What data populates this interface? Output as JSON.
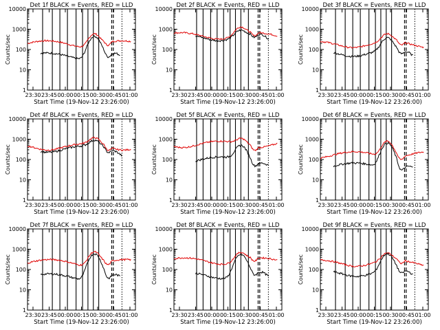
{
  "colors": {
    "events": "#000000",
    "lld": "#e00000",
    "axes": "#000000",
    "background": "#ffffff"
  },
  "chart_data": [
    {
      "type": "line",
      "title": "Det 1f BLACK = Events, RED = LLD",
      "xlabel": "Start Time (19-Nov-12 23:26:00)",
      "ylabel": "Counts/sec",
      "yscale": "log",
      "ylim": [
        1,
        10000
      ],
      "xticks": [
        "23:30",
        "23:45",
        "00:00",
        "00:15",
        "00:30",
        "00:45",
        "01:00"
      ],
      "yticks": [
        "1",
        "10",
        "100",
        "1000",
        "10000"
      ],
      "red_level": 200,
      "red_peak": 600,
      "black_level": 50,
      "black_peak": 450,
      "black_start": 0.12,
      "black_end": 0.8
    },
    {
      "type": "line",
      "title": "Det 2f BLACK = Events, RED = LLD",
      "xlabel": "Start Time (19-Nov-12 23:26:00)",
      "ylabel": "Counts/sec",
      "yscale": "log",
      "ylim": [
        1,
        10000
      ],
      "xticks": [
        "23:30",
        "23:45",
        "00:00",
        "00:15",
        "00:30",
        "00:45",
        "01:00"
      ],
      "yticks": [
        "1",
        "10",
        "100",
        "1000",
        "10000"
      ],
      "red_level": 500,
      "red_peak": 1300,
      "black_level": 420,
      "black_peak": 900,
      "black_start": 0.2,
      "black_end": 0.82
    },
    {
      "type": "line",
      "title": "Det 3f BLACK = Events, RED = LLD",
      "xlabel": "Start Time (19-Nov-12 23:26:00)",
      "ylabel": "Counts/sec",
      "yscale": "log",
      "ylim": [
        1,
        10000
      ],
      "xticks": [
        "23:30",
        "23:45",
        "00:00",
        "00:15",
        "00:30",
        "00:45",
        "01:00"
      ],
      "yticks": [
        "1",
        "10",
        "100",
        "1000",
        "10000"
      ],
      "red_level": 190,
      "red_peak": 600,
      "black_level": 70,
      "black_peak": 380,
      "black_start": 0.12,
      "black_end": 0.8
    },
    {
      "type": "line",
      "title": "Det 4f BLACK = Events, RED = LLD",
      "xlabel": "Start Time (19-Nov-12 23:26:00)",
      "ylabel": "Counts/sec",
      "yscale": "log",
      "ylim": [
        1,
        10000
      ],
      "xticks": [
        "23:30",
        "23:45",
        "00:00",
        "00:15",
        "00:30",
        "00:45",
        "01:00"
      ],
      "yticks": [
        "1",
        "10",
        "100",
        "1000",
        "10000"
      ],
      "red_level": 450,
      "red_peak": 1200,
      "black_level": 350,
      "black_peak": 900,
      "black_start": 0.12,
      "black_end": 0.82
    },
    {
      "type": "line",
      "title": "Det 5f BLACK = Events, RED = LLD",
      "xlabel": "Start Time (19-Nov-12 23:26:00)",
      "ylabel": "Counts/sec",
      "yscale": "log",
      "ylim": [
        1,
        10000
      ],
      "xticks": [
        "23:30",
        "23:45",
        "00:00",
        "00:15",
        "00:30",
        "00:45",
        "01:00"
      ],
      "yticks": [
        "1",
        "10",
        "100",
        "1000",
        "10000"
      ],
      "red_level": 600,
      "red_peak": 1100,
      "black_level": 100,
      "black_peak": 500,
      "black_start": 0.2,
      "black_end": 0.82
    },
    {
      "type": "line",
      "title": "Det 6f BLACK = Events, RED = LLD",
      "xlabel": "Start Time (19-Nov-12 23:26:00)",
      "ylabel": "Counts/sec",
      "yscale": "log",
      "ylim": [
        1,
        10000
      ],
      "xticks": [
        "23:30",
        "23:45",
        "00:00",
        "00:15",
        "00:30",
        "00:45",
        "01:00"
      ],
      "yticks": [
        "1",
        "10",
        "100",
        "1000",
        "10000"
      ],
      "red_level": 180,
      "red_peak": 800,
      "black_level": 50,
      "black_peak": 650,
      "black_start": 0.12,
      "black_end": 0.8
    },
    {
      "type": "line",
      "title": "Det 7f BLACK = Events, RED = LLD",
      "xlabel": "Start Time (19-Nov-12 23:26:00)",
      "ylabel": "Counts/sec",
      "yscale": "log",
      "ylim": [
        1,
        10000
      ],
      "xticks": [
        "23:30",
        "23:45",
        "00:00",
        "00:15",
        "00:30",
        "00:45",
        "01:00"
      ],
      "yticks": [
        "1",
        "10",
        "100",
        "1000",
        "10000"
      ],
      "red_level": 230,
      "red_peak": 750,
      "black_level": 45,
      "black_peak": 600,
      "black_start": 0.12,
      "black_end": 0.8
    },
    {
      "type": "line",
      "title": "Det 8f BLACK = Events, RED = LLD",
      "xlabel": "Start Time (19-Nov-12 23:26:00)",
      "ylabel": "Counts/sec",
      "yscale": "log",
      "ylim": [
        1,
        10000
      ],
      "xticks": [
        "23:30",
        "23:45",
        "00:00",
        "00:15",
        "00:30",
        "00:45",
        "01:00"
      ],
      "yticks": [
        "1",
        "10",
        "100",
        "1000",
        "10000"
      ],
      "red_level": 280,
      "red_peak": 700,
      "black_level": 55,
      "black_peak": 550,
      "black_start": 0.2,
      "black_end": 0.82
    },
    {
      "type": "line",
      "title": "Det 9f BLACK = Events, RED = LLD",
      "xlabel": "Start Time (19-Nov-12 23:26:00)",
      "ylabel": "Counts/sec",
      "yscale": "log",
      "ylim": [
        1,
        10000
      ],
      "xticks": [
        "23:30",
        "23:45",
        "00:00",
        "00:15",
        "00:30",
        "00:45",
        "01:00"
      ],
      "yticks": [
        "1",
        "10",
        "100",
        "1000",
        "10000"
      ],
      "red_level": 220,
      "red_peak": 650,
      "black_level": 70,
      "black_peak": 600,
      "black_start": 0.12,
      "black_end": 0.8
    }
  ]
}
